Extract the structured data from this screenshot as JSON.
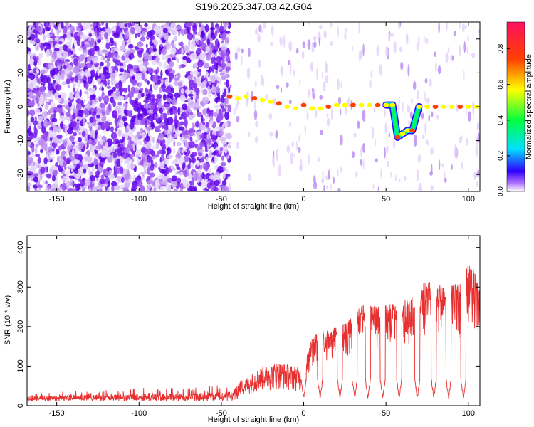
{
  "title": "S196.2025.347.03.42.G04",
  "chart_data": [
    {
      "type": "heatmap",
      "title": "S196.2025.347.03.42.G04",
      "xlabel": "Height of straight line (km)",
      "ylabel": "Frequency (Hz)",
      "xlim": [
        -168,
        107
      ],
      "ylim": [
        -25,
        25
      ],
      "xticks": [
        -150,
        -100,
        -50,
        0,
        50,
        100
      ],
      "yticks": [
        -20,
        -10,
        0,
        10,
        20
      ],
      "colorbar": {
        "label": "Normalized spectral amplitude",
        "range": [
          0.0,
          0.95
        ],
        "ticks": [
          0.0,
          0.2,
          0.4,
          0.6,
          0.8
        ]
      },
      "ridge_track": [
        {
          "x": -45,
          "y": 3
        },
        {
          "x": -40,
          "y": 2.5
        },
        {
          "x": -35,
          "y": 3
        },
        {
          "x": -30,
          "y": 2.5
        },
        {
          "x": -25,
          "y": 2
        },
        {
          "x": -20,
          "y": 1.5
        },
        {
          "x": -15,
          "y": 1
        },
        {
          "x": -10,
          "y": 0
        },
        {
          "x": -5,
          "y": -0.5
        },
        {
          "x": 0,
          "y": 0.5
        },
        {
          "x": 5,
          "y": -0.5
        },
        {
          "x": 10,
          "y": -0.5
        },
        {
          "x": 15,
          "y": 0
        },
        {
          "x": 20,
          "y": 0.5
        },
        {
          "x": 25,
          "y": 0.5
        },
        {
          "x": 30,
          "y": 0.5
        },
        {
          "x": 35,
          "y": 0.5
        },
        {
          "x": 40,
          "y": 0.5
        },
        {
          "x": 45,
          "y": 0.5
        },
        {
          "x": 50,
          "y": 0.5
        },
        {
          "x": 54,
          "y": 0.5
        },
        {
          "x": 57,
          "y": -9
        },
        {
          "x": 60,
          "y": -8
        },
        {
          "x": 63,
          "y": -7
        },
        {
          "x": 66,
          "y": -7
        },
        {
          "x": 70,
          "y": 0
        },
        {
          "x": 75,
          "y": 0
        },
        {
          "x": 80,
          "y": 0
        },
        {
          "x": 85,
          "y": 0
        },
        {
          "x": 90,
          "y": 0
        },
        {
          "x": 95,
          "y": 0
        },
        {
          "x": 100,
          "y": 0
        },
        {
          "x": 105,
          "y": 0
        }
      ]
    },
    {
      "type": "line",
      "xlabel": "Height of straight line (km)",
      "ylabel": "SNR (10 * v/v)",
      "xlim": [
        -168,
        107
      ],
      "ylim": [
        0,
        430
      ],
      "xticks": [
        -150,
        -100,
        -50,
        0,
        50,
        100
      ],
      "yticks": [
        0,
        100,
        200,
        300,
        400
      ],
      "color": "#e83030",
      "envelope": [
        {
          "x": -168,
          "y": 30
        },
        {
          "x": -150,
          "y": 40
        },
        {
          "x": -120,
          "y": 40
        },
        {
          "x": -100,
          "y": 45
        },
        {
          "x": -80,
          "y": 45
        },
        {
          "x": -60,
          "y": 50
        },
        {
          "x": -45,
          "y": 55
        },
        {
          "x": -35,
          "y": 70
        },
        {
          "x": -25,
          "y": 100
        },
        {
          "x": -15,
          "y": 110
        },
        {
          "x": -5,
          "y": 100
        },
        {
          "x": 0,
          "y": 95
        },
        {
          "x": 3,
          "y": 150
        },
        {
          "x": 8,
          "y": 200
        },
        {
          "x": 15,
          "y": 190
        },
        {
          "x": 25,
          "y": 210
        },
        {
          "x": 35,
          "y": 260
        },
        {
          "x": 45,
          "y": 250
        },
        {
          "x": 55,
          "y": 260
        },
        {
          "x": 65,
          "y": 270
        },
        {
          "x": 75,
          "y": 320
        },
        {
          "x": 85,
          "y": 300
        },
        {
          "x": 95,
          "y": 310
        },
        {
          "x": 100,
          "y": 360
        },
        {
          "x": 104,
          "y": 340
        },
        {
          "x": 107,
          "y": 300
        }
      ],
      "dips_x": [
        0,
        10,
        22,
        31,
        39,
        48,
        58,
        69,
        79,
        88,
        97
      ],
      "dip_min_y": 15
    }
  ]
}
